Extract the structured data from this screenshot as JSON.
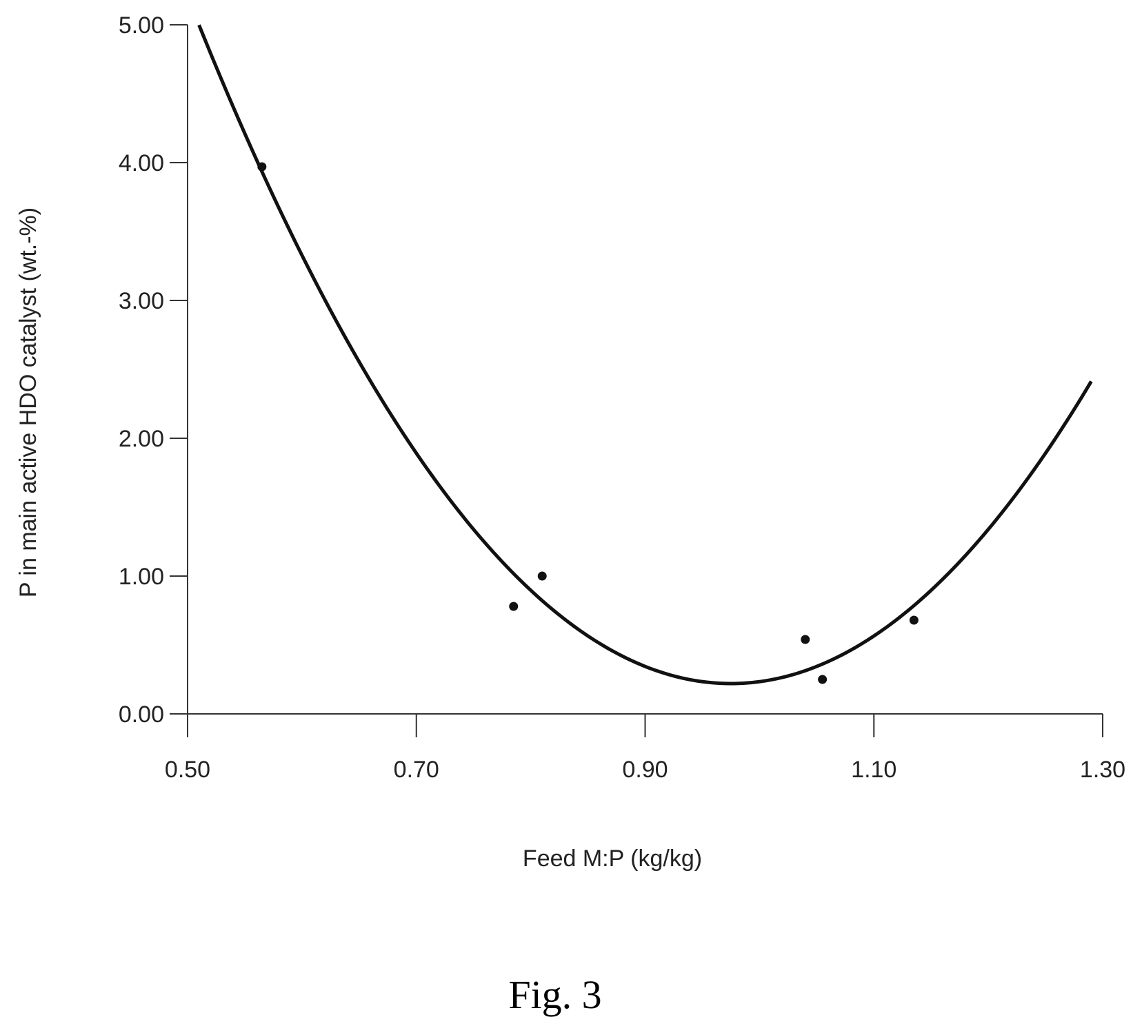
{
  "figure": {
    "caption": "Fig. 3"
  },
  "chart_data": {
    "type": "scatter",
    "title": "",
    "xlabel": "Feed M:P (kg/kg)",
    "ylabel": "P in main active HDO catalyst (wt.-%)",
    "xlim": [
      0.5,
      1.3
    ],
    "ylim": [
      0.0,
      5.0
    ],
    "xticks": [
      "0.50",
      "0.70",
      "0.90",
      "1.10",
      "1.30"
    ],
    "yticks": [
      "0.00",
      "1.00",
      "2.00",
      "3.00",
      "4.00",
      "5.00"
    ],
    "grid": false,
    "legend": "none",
    "points": [
      {
        "x": 0.565,
        "y": 3.97
      },
      {
        "x": 0.785,
        "y": 0.78
      },
      {
        "x": 0.81,
        "y": 1.0
      },
      {
        "x": 1.04,
        "y": 0.54
      },
      {
        "x": 1.055,
        "y": 0.25
      },
      {
        "x": 1.135,
        "y": 0.68
      }
    ],
    "fit_curve": {
      "type": "quadratic",
      "x_range": [
        0.51,
        1.29
      ],
      "vertex_x": 0.975,
      "vertex_y": 0.22,
      "a": 22.1
    },
    "colors": {
      "marks": "#111111",
      "axes": "#333333"
    }
  }
}
